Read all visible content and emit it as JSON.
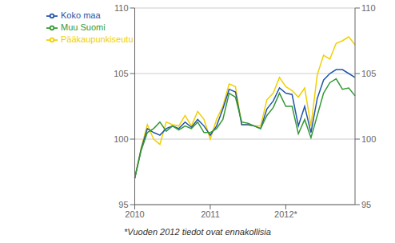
{
  "chart_data": {
    "type": "line",
    "categories": [
      "2010",
      null,
      null,
      null,
      null,
      null,
      null,
      null,
      null,
      null,
      null,
      null,
      "2011",
      null,
      null,
      null,
      null,
      null,
      null,
      null,
      null,
      null,
      null,
      null,
      "2012*",
      null,
      null,
      null,
      null,
      null,
      null,
      null,
      null,
      null,
      null,
      null
    ],
    "series": [
      {
        "name": "Pääkaupunkiseutu",
        "color": "#f0d000",
        "values": [
          97.0,
          99.3,
          101.1,
          100.0,
          99.6,
          101.3,
          101.1,
          101.0,
          101.8,
          101.0,
          102.1,
          101.5,
          100.0,
          101.5,
          102.5,
          104.2,
          104.0,
          101.1,
          101.1,
          101.0,
          101.0,
          103.0,
          103.5,
          104.7,
          104.0,
          103.7,
          103.2,
          103.9,
          101.0,
          104.9,
          106.4,
          106.1,
          107.3,
          107.5,
          107.8,
          107.2
        ]
      },
      {
        "name": "Koko maa",
        "color": "#2255aa",
        "values": [
          97.0,
          99.2,
          100.8,
          100.5,
          100.3,
          100.8,
          101.0,
          100.8,
          101.3,
          100.9,
          101.5,
          101.0,
          100.3,
          101.0,
          102.3,
          103.8,
          103.6,
          101.1,
          101.1,
          101.0,
          100.8,
          102.3,
          102.9,
          103.9,
          103.5,
          103.4,
          101.0,
          102.5,
          100.5,
          103.1,
          104.5,
          105.0,
          105.3,
          105.3,
          105.0,
          104.7
        ]
      },
      {
        "name": "Muu Suomi",
        "color": "#339933",
        "values": [
          97.0,
          99.1,
          100.5,
          100.8,
          101.3,
          100.6,
          101.0,
          100.7,
          101.0,
          100.8,
          101.3,
          100.5,
          100.5,
          100.8,
          101.5,
          103.5,
          103.2,
          101.3,
          101.2,
          101.0,
          100.8,
          101.8,
          102.4,
          103.5,
          102.5,
          102.5,
          100.4,
          101.5,
          100.1,
          101.8,
          103.5,
          104.3,
          104.6,
          103.8,
          103.9,
          103.3
        ]
      }
    ],
    "ylim": [
      95,
      110
    ],
    "yticks": [
      95,
      100,
      105,
      110
    ],
    "y2lim": [
      95,
      110
    ],
    "y2ticks": [
      95,
      100,
      105,
      110
    ],
    "grid": true,
    "legend": "upper left",
    "annotations": [
      "*Vuoden 2012 tiedot ovat ennakollisia"
    ]
  }
}
